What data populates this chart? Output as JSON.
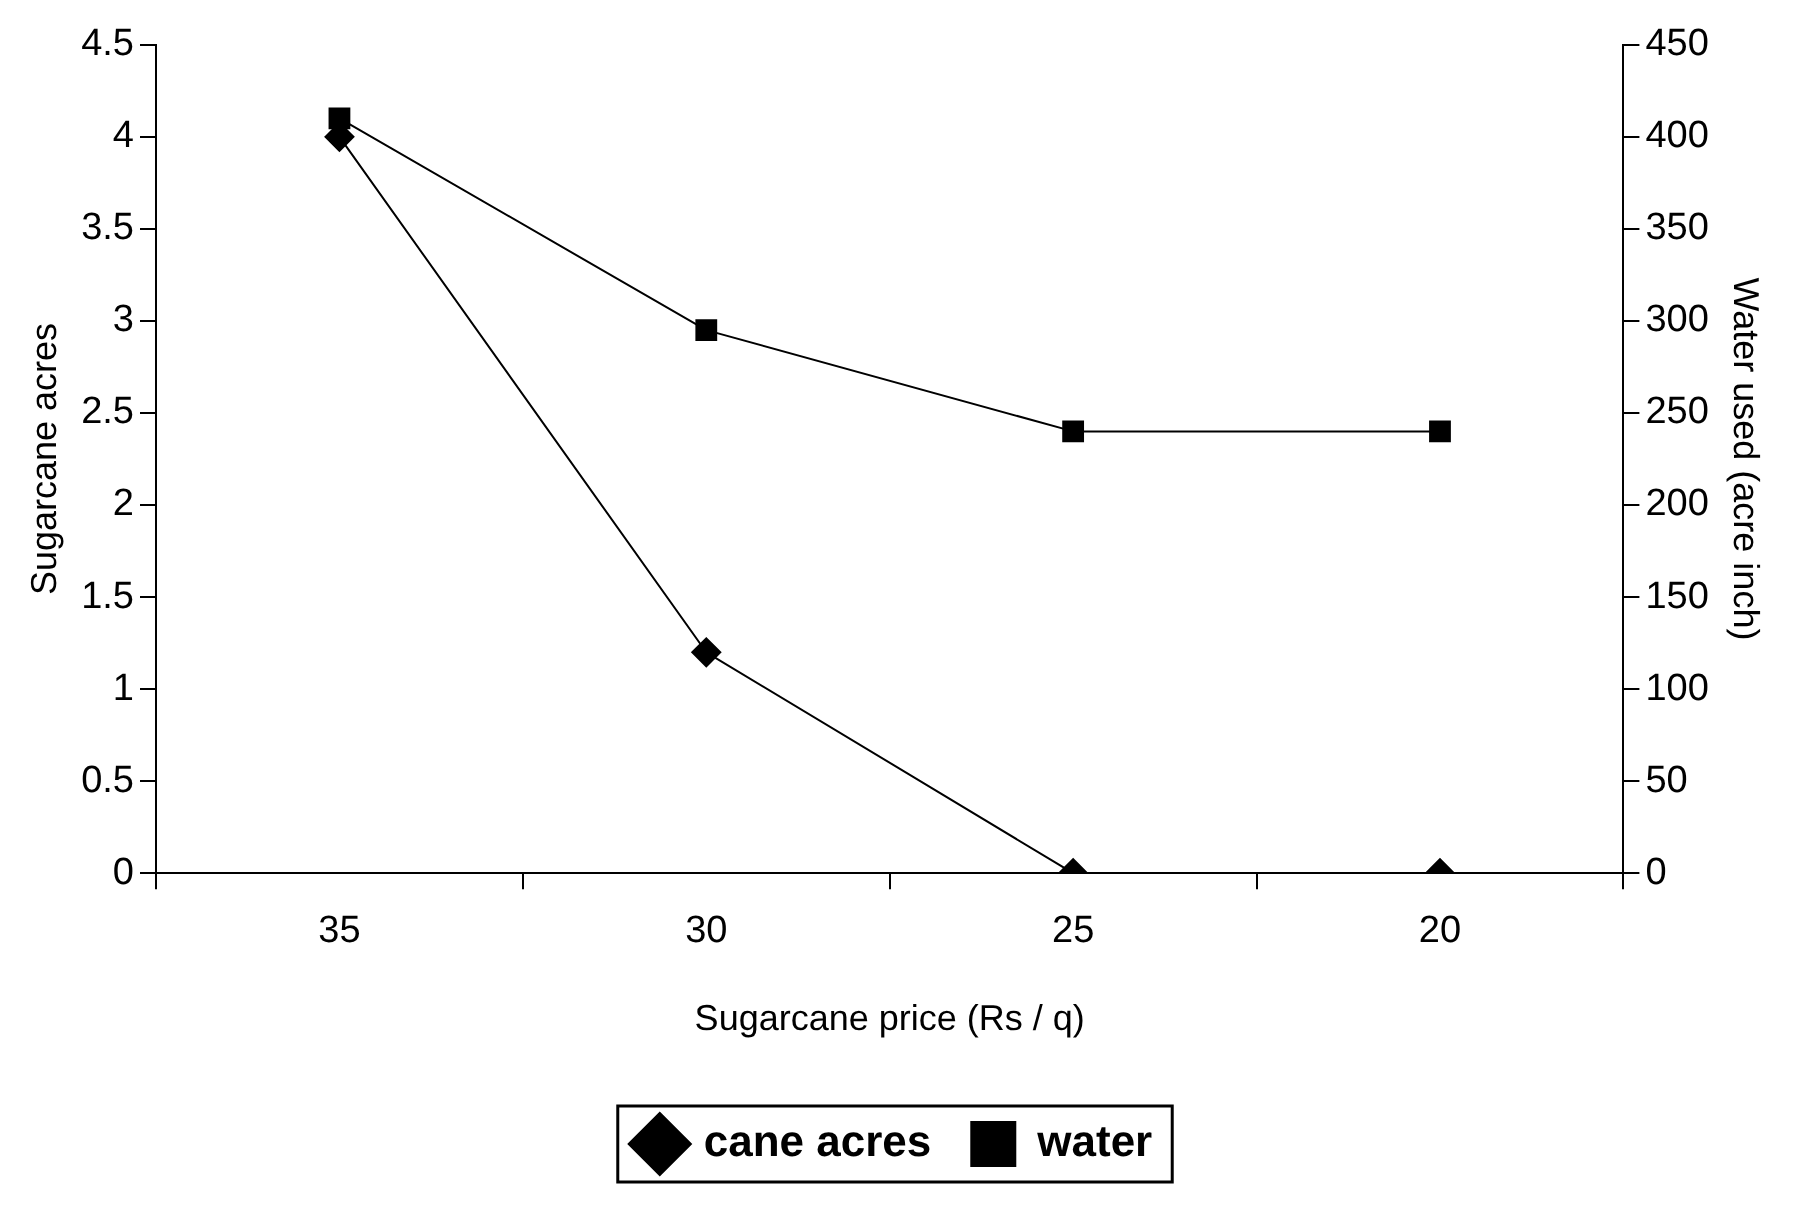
{
  "chart_data": {
    "type": "line",
    "xlabel": "Sugarcane price (Rs / q)",
    "ylabel": "Sugarcane acres",
    "y2label": "Water used (acre inch)",
    "categories": [
      "35",
      "30",
      "25",
      "20"
    ],
    "series": [
      {
        "name": "cane acres",
        "color": "#000000",
        "values": [
          4,
          1.2,
          0,
          0
        ],
        "marker": "diamond"
      },
      {
        "name": "water",
        "color": "#000000",
        "values": [
          410,
          295,
          240,
          240
        ],
        "axis": "y2",
        "marker": "square"
      }
    ],
    "ylim": [
      0,
      4.5
    ],
    "yticks": [
      0,
      0.5,
      1,
      1.5,
      2,
      2.5,
      3,
      3.5,
      4,
      4.5
    ],
    "y2lim": [
      0,
      450
    ],
    "y2ticks": [
      0,
      50,
      100,
      150,
      200,
      250,
      300,
      350,
      400,
      450
    ],
    "grid": false,
    "legend": "bottom",
    "line_style": "solid"
  }
}
